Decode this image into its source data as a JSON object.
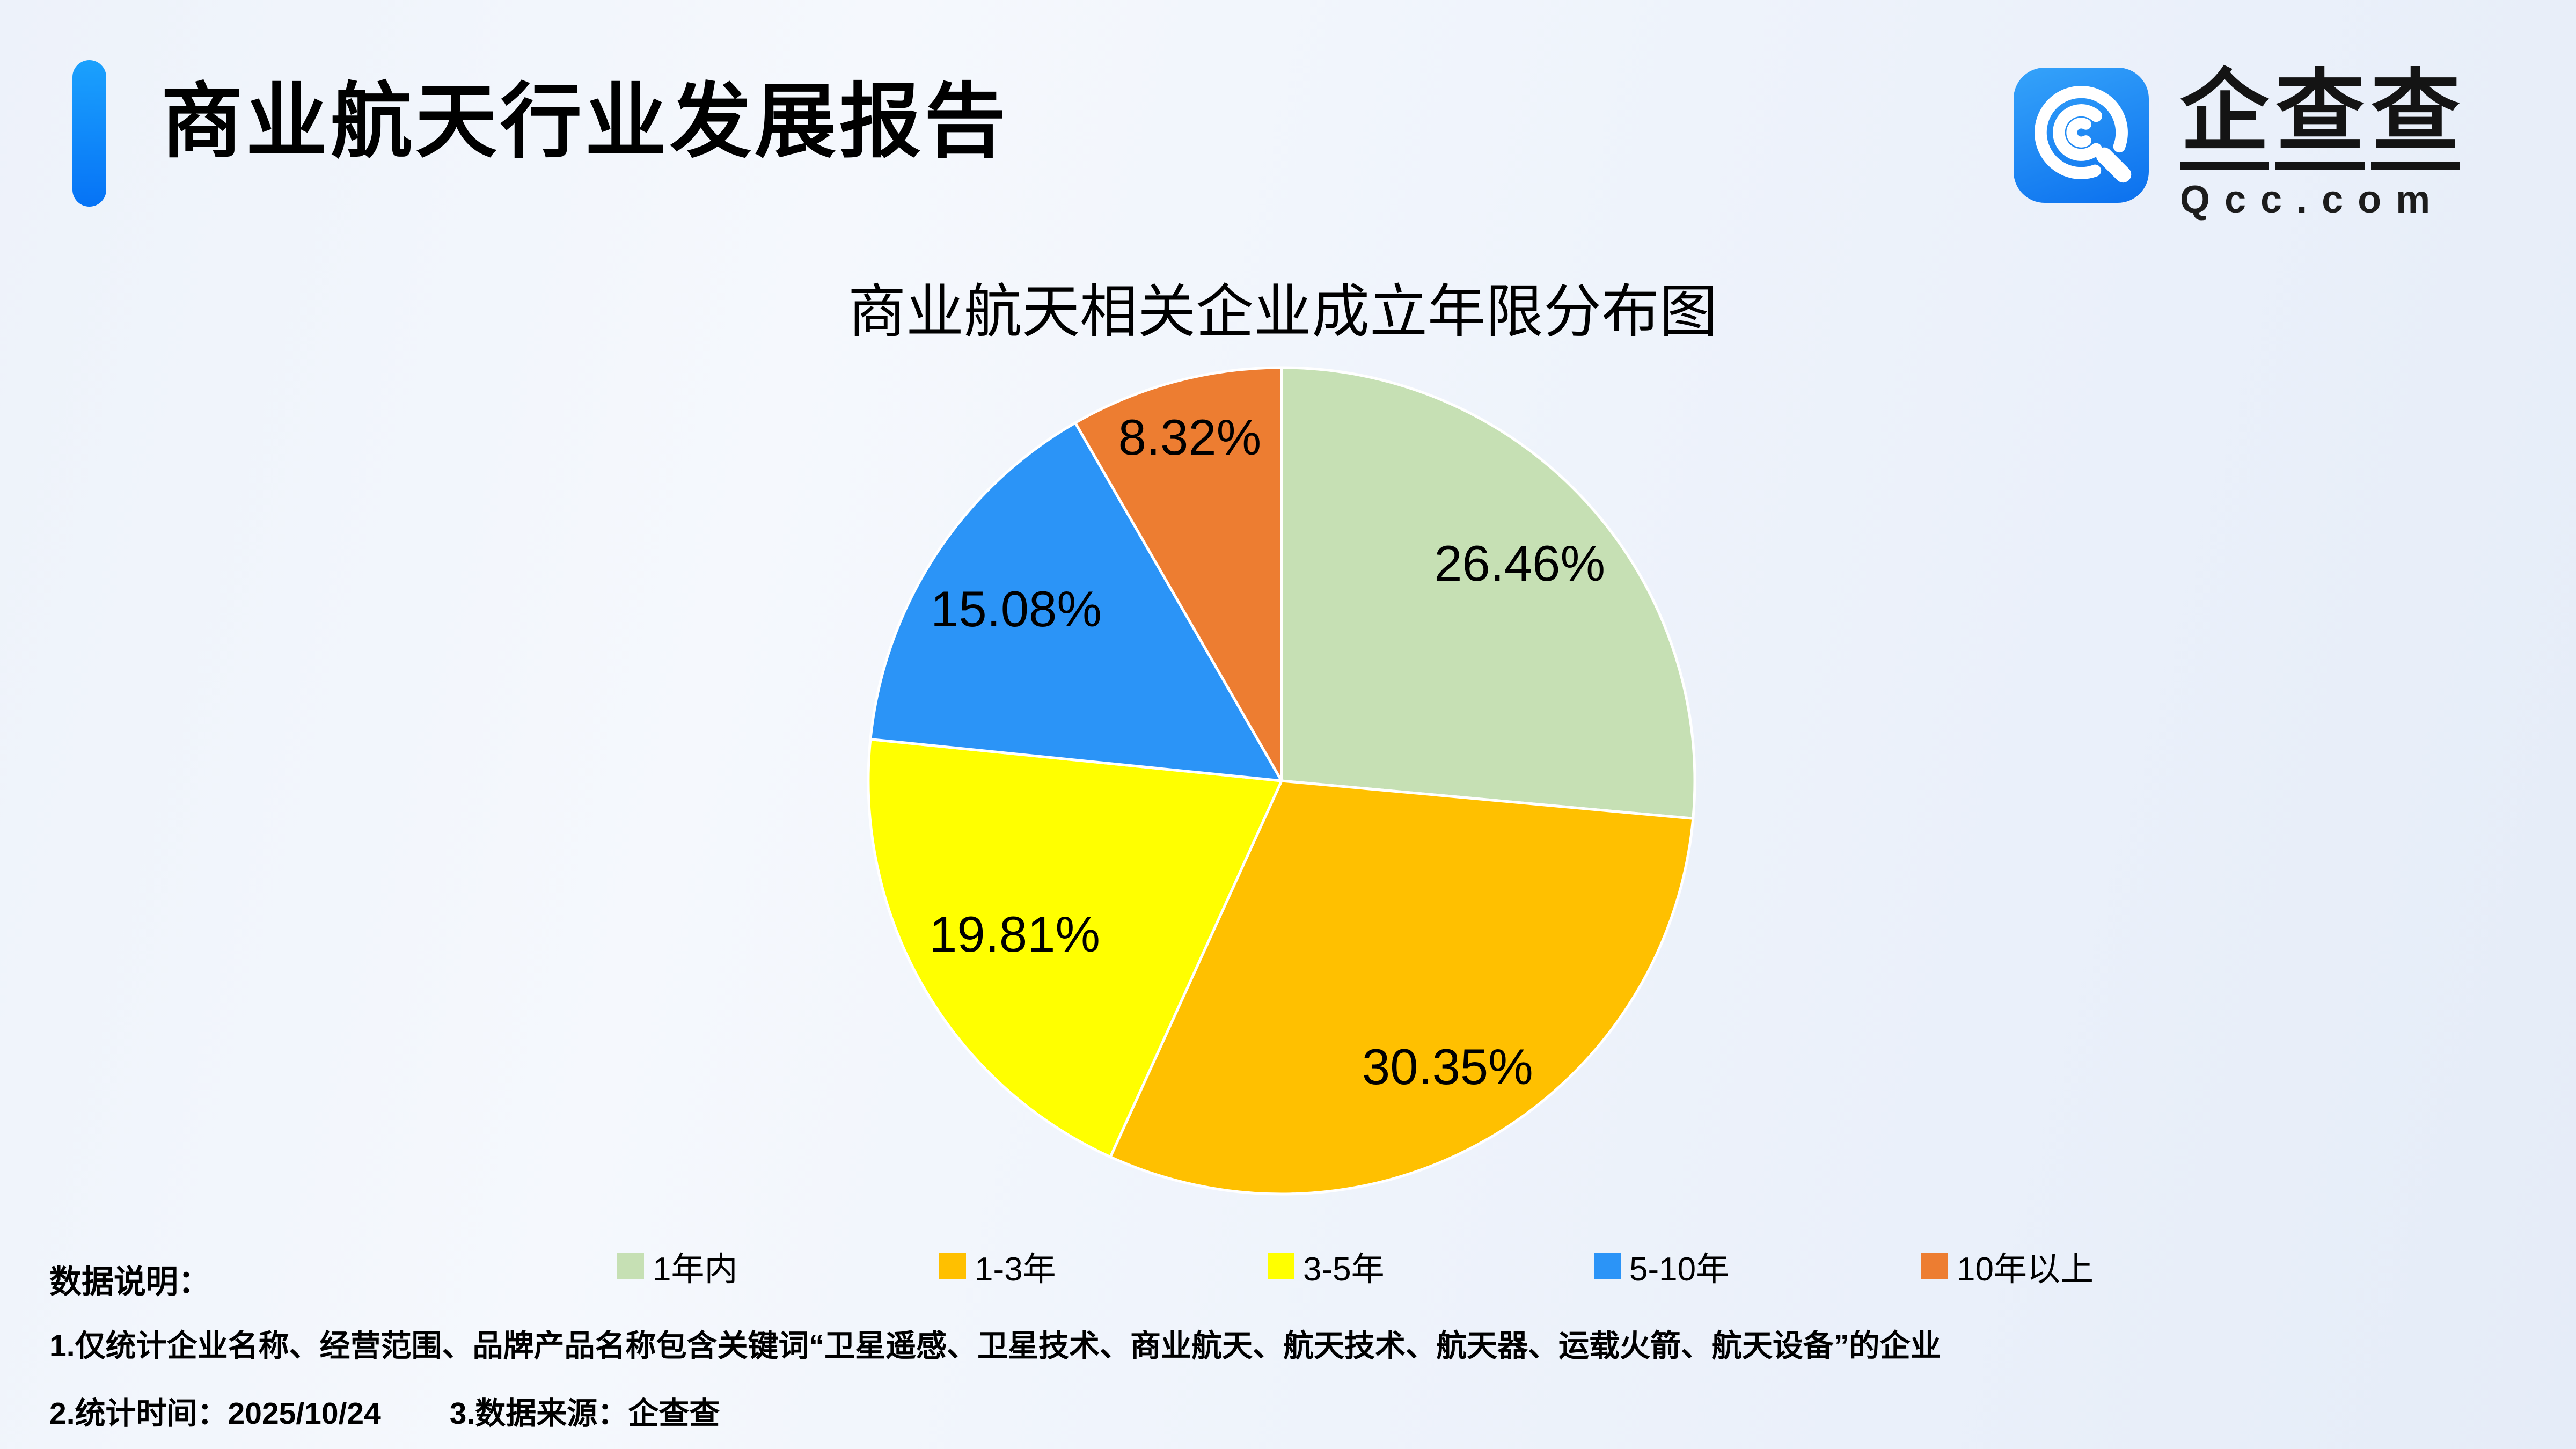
{
  "header": {
    "title": "商业航天行业发展报告"
  },
  "brand": {
    "name": "企查查",
    "domain": "Qcc.com",
    "icon_color_top": "#35a3fa",
    "icon_color_bottom": "#0b70ee"
  },
  "chart_data": {
    "type": "pie",
    "title": "商业航天相关企业成立年限分布图",
    "categories": [
      "1年内",
      "1-3年",
      "3-5年",
      "5-10年",
      "10年以上"
    ],
    "values": [
      26.46,
      30.35,
      19.81,
      15.08,
      8.32
    ],
    "labels": [
      "26.46%",
      "30.35%",
      "19.81%",
      "15.08%",
      "8.32%"
    ],
    "colors": [
      "#c6e0b4",
      "#ffc000",
      "#ffff00",
      "#2b94f7",
      "#ed7d31"
    ],
    "start_angle_deg": 0,
    "direction": "clockwise",
    "slice_border_color": "#ffffff",
    "legend_position": "bottom"
  },
  "notes": {
    "heading": "数据说明：",
    "line1": "1.仅统计企业名称、经营范围、品牌产品名称包含关键词“卫星遥感、卫星技术、商业航天、航天技术、航天器、运载火箭、航天设备”的企业",
    "line2_time": "2.统计时间：2025/10/24",
    "line2_source": "3.数据来源：企查查"
  }
}
